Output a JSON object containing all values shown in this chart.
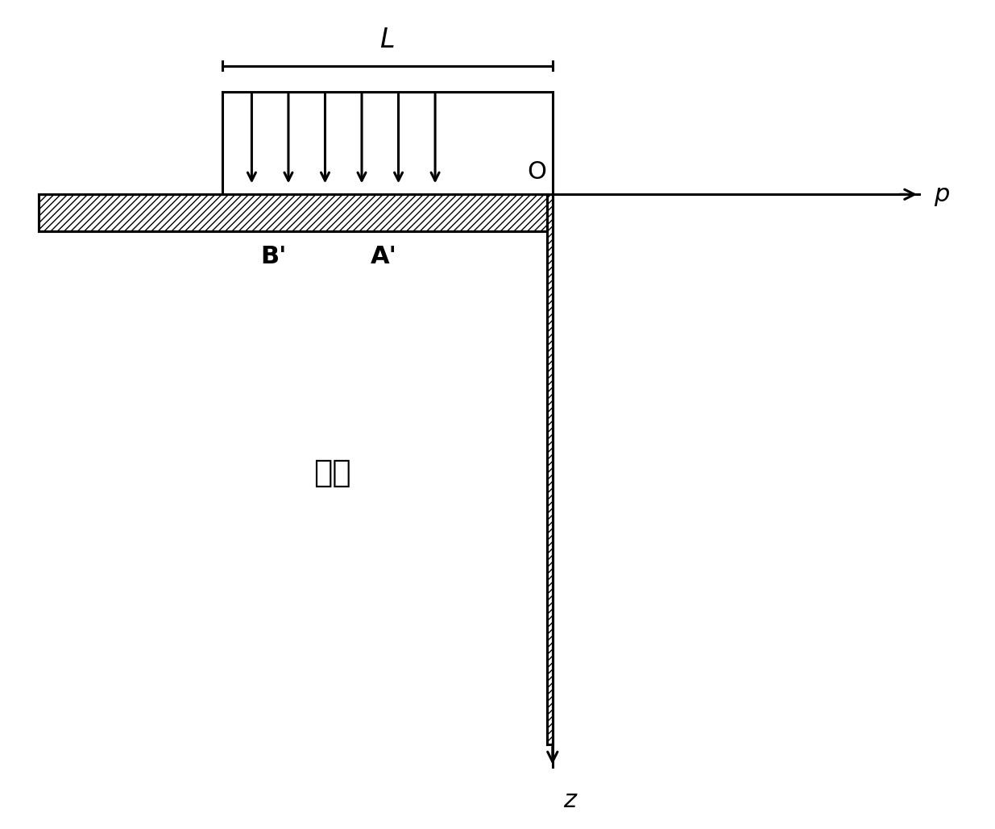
{
  "bg_color": "#ffffff",
  "line_color": "#000000",
  "p_arrow_label": "p",
  "z_arrow_label": "z",
  "o_label": "O",
  "L_label": "L",
  "B_prime_label": "B'",
  "A_prime_label": "A'",
  "soil_label": "土体",
  "font_size_labels": 20,
  "font_size_soil": 24,
  "lw": 2.2
}
